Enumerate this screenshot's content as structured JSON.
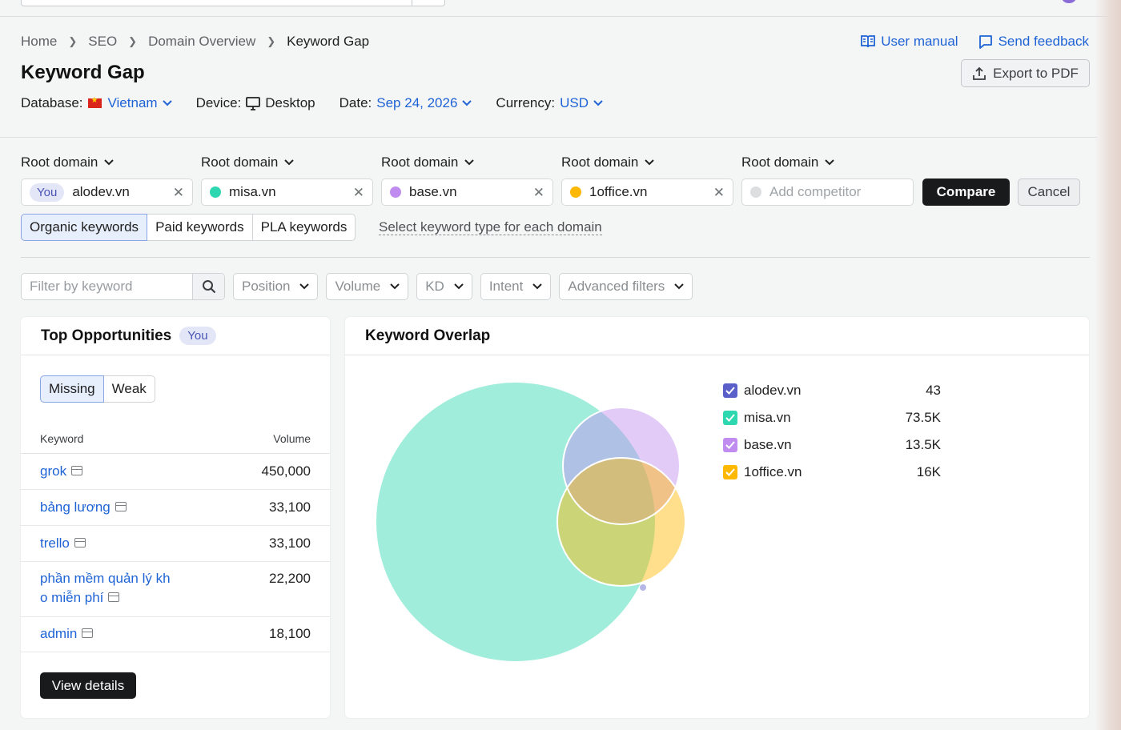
{
  "breadcrumb": [
    "Home",
    "SEO",
    "Domain Overview",
    "Keyword Gap"
  ],
  "links": {
    "manual": "User manual",
    "feedback": "Send feedback"
  },
  "export_label": "Export to PDF",
  "title": "Keyword Gap",
  "meta": {
    "database_label": "Database:",
    "database_value": "Vietnam",
    "device_label": "Device:",
    "device_value": "Desktop",
    "date_label": "Date:",
    "date_value": "Sep 24, 2026",
    "currency_label": "Currency:",
    "currency_value": "USD"
  },
  "root_label": "Root domain",
  "domains": [
    {
      "you": "You",
      "name": "alodev.vn",
      "color": "#5a5fc9"
    },
    {
      "name": "misa.vn",
      "color": "#2dd7b0"
    },
    {
      "name": "base.vn",
      "color": "#c08cf0"
    },
    {
      "name": "1office.vn",
      "color": "#ffb800"
    }
  ],
  "add_competitor_placeholder": "Add competitor",
  "compare_label": "Compare",
  "cancel_label": "Cancel",
  "keyword_types": [
    "Organic keywords",
    "Paid keywords",
    "PLA keywords"
  ],
  "select_type_link": "Select keyword type for each domain",
  "filters": {
    "keyword_placeholder": "Filter by keyword",
    "dropdowns": [
      "Position",
      "Volume",
      "KD",
      "Intent",
      "Advanced filters"
    ]
  },
  "opportunities": {
    "title": "Top Opportunities",
    "badge": "You",
    "tabs": [
      "Missing",
      "Weak"
    ],
    "col_keyword": "Keyword",
    "col_volume": "Volume",
    "rows": [
      {
        "kw": "grok",
        "vol": "450,000"
      },
      {
        "kw": "bảng lương",
        "vol": "33,100"
      },
      {
        "kw": "trello",
        "vol": "33,100"
      },
      {
        "kw": "phần mềm quản lý kh",
        "kw2": "o miễn phí",
        "vol": "22,200"
      },
      {
        "kw": "admin",
        "vol": "18,100"
      }
    ],
    "view_details": "View details"
  },
  "overlap": {
    "title": "Keyword Overlap",
    "legend": [
      {
        "name": "alodev.vn",
        "count": "43",
        "color": "#5a5fc9"
      },
      {
        "name": "misa.vn",
        "count": "73.5K",
        "color": "#2dd7b0"
      },
      {
        "name": "base.vn",
        "count": "13.5K",
        "color": "#c08cf0"
      },
      {
        "name": "1office.vn",
        "count": "16K",
        "color": "#ffb800"
      }
    ]
  }
}
